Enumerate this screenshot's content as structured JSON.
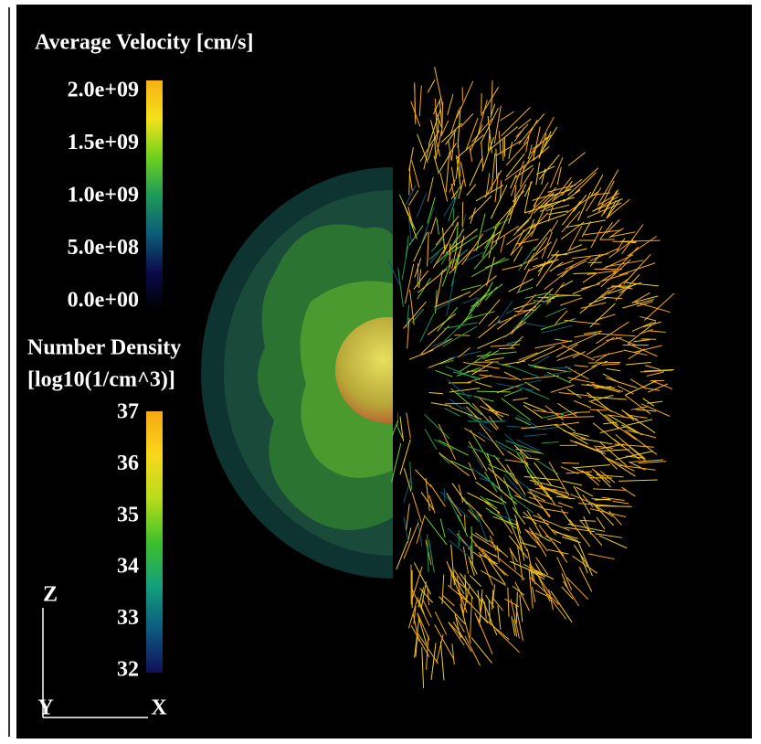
{
  "legends": [
    {
      "title": "Average Velocity [cm/s]",
      "colors": [
        "#000000",
        "#0a0a4a",
        "#0b5c78",
        "#1d9a5a",
        "#6fd11c",
        "#f3e21a",
        "#f7b012"
      ],
      "ticks": [
        {
          "value": 2000000000,
          "label": "2.0e+09"
        },
        {
          "value": 1500000000,
          "label": "1.5e+09"
        },
        {
          "value": 1000000000,
          "label": "1.0e+09"
        },
        {
          "value": 500000000,
          "label": "5.0e+08"
        },
        {
          "value": 0,
          "label": "0.0e+00"
        }
      ]
    },
    {
      "title": "Number Density",
      "subtitle": "[log10(1/cm^3)]",
      "colors": [
        "#10105a",
        "#0d5a80",
        "#13a07a",
        "#3fc02a",
        "#b8dc1c",
        "#f8d81a",
        "#f7a812"
      ],
      "ticks": [
        37,
        36,
        35,
        34,
        33,
        32
      ]
    }
  ],
  "axes": {
    "z": "Z",
    "y": "Y",
    "x": "X"
  }
}
